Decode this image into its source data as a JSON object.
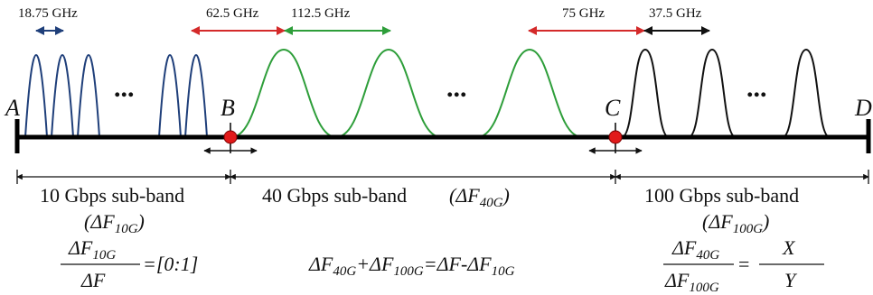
{
  "spacing_labels": {
    "s10g": "18.75 GHz",
    "s_10_40": "62.5 GHz",
    "s40g": "112.5 GHz",
    "s_40_100": "75 GHz",
    "s100g": "37.5 GHz"
  },
  "points": {
    "a": "A",
    "b": "B",
    "c": "C",
    "d": "D"
  },
  "ellipsis": "...",
  "subbands": {
    "s10g": {
      "name": "10 Gbps sub-band",
      "symbol": "(ΔF",
      "sub": "10G",
      "close": ")"
    },
    "s40g": {
      "name": "40 Gbps sub-band",
      "symbol": "(ΔF",
      "sub": "40G",
      "close": ")"
    },
    "s100g": {
      "name": "100 Gbps sub-band",
      "symbol": "(ΔF",
      "sub": "100G",
      "close": ")"
    }
  },
  "equations": {
    "eq1": {
      "num": "ΔF",
      "num_sub": "10G",
      "den": "ΔF",
      "rhs": "=[0:1]"
    },
    "eq2": {
      "t1": "ΔF",
      "s1": "40G",
      "t2": "+ΔF",
      "s2": "100G",
      "t3": "=ΔF-ΔF",
      "s3": "10G"
    },
    "eq3": {
      "num": "ΔF",
      "num_sub": "40G",
      "den": "ΔF",
      "den_sub": "100G",
      "eq": "=",
      "x": "X",
      "y": "Y"
    }
  },
  "colors": {
    "band_10g": "#1f3f7a",
    "band_40g": "#2e9e3a",
    "band_100g": "#111111",
    "spacing_red": "#d42a2a",
    "marker_red": "#e11a1a",
    "line": "#000000"
  }
}
